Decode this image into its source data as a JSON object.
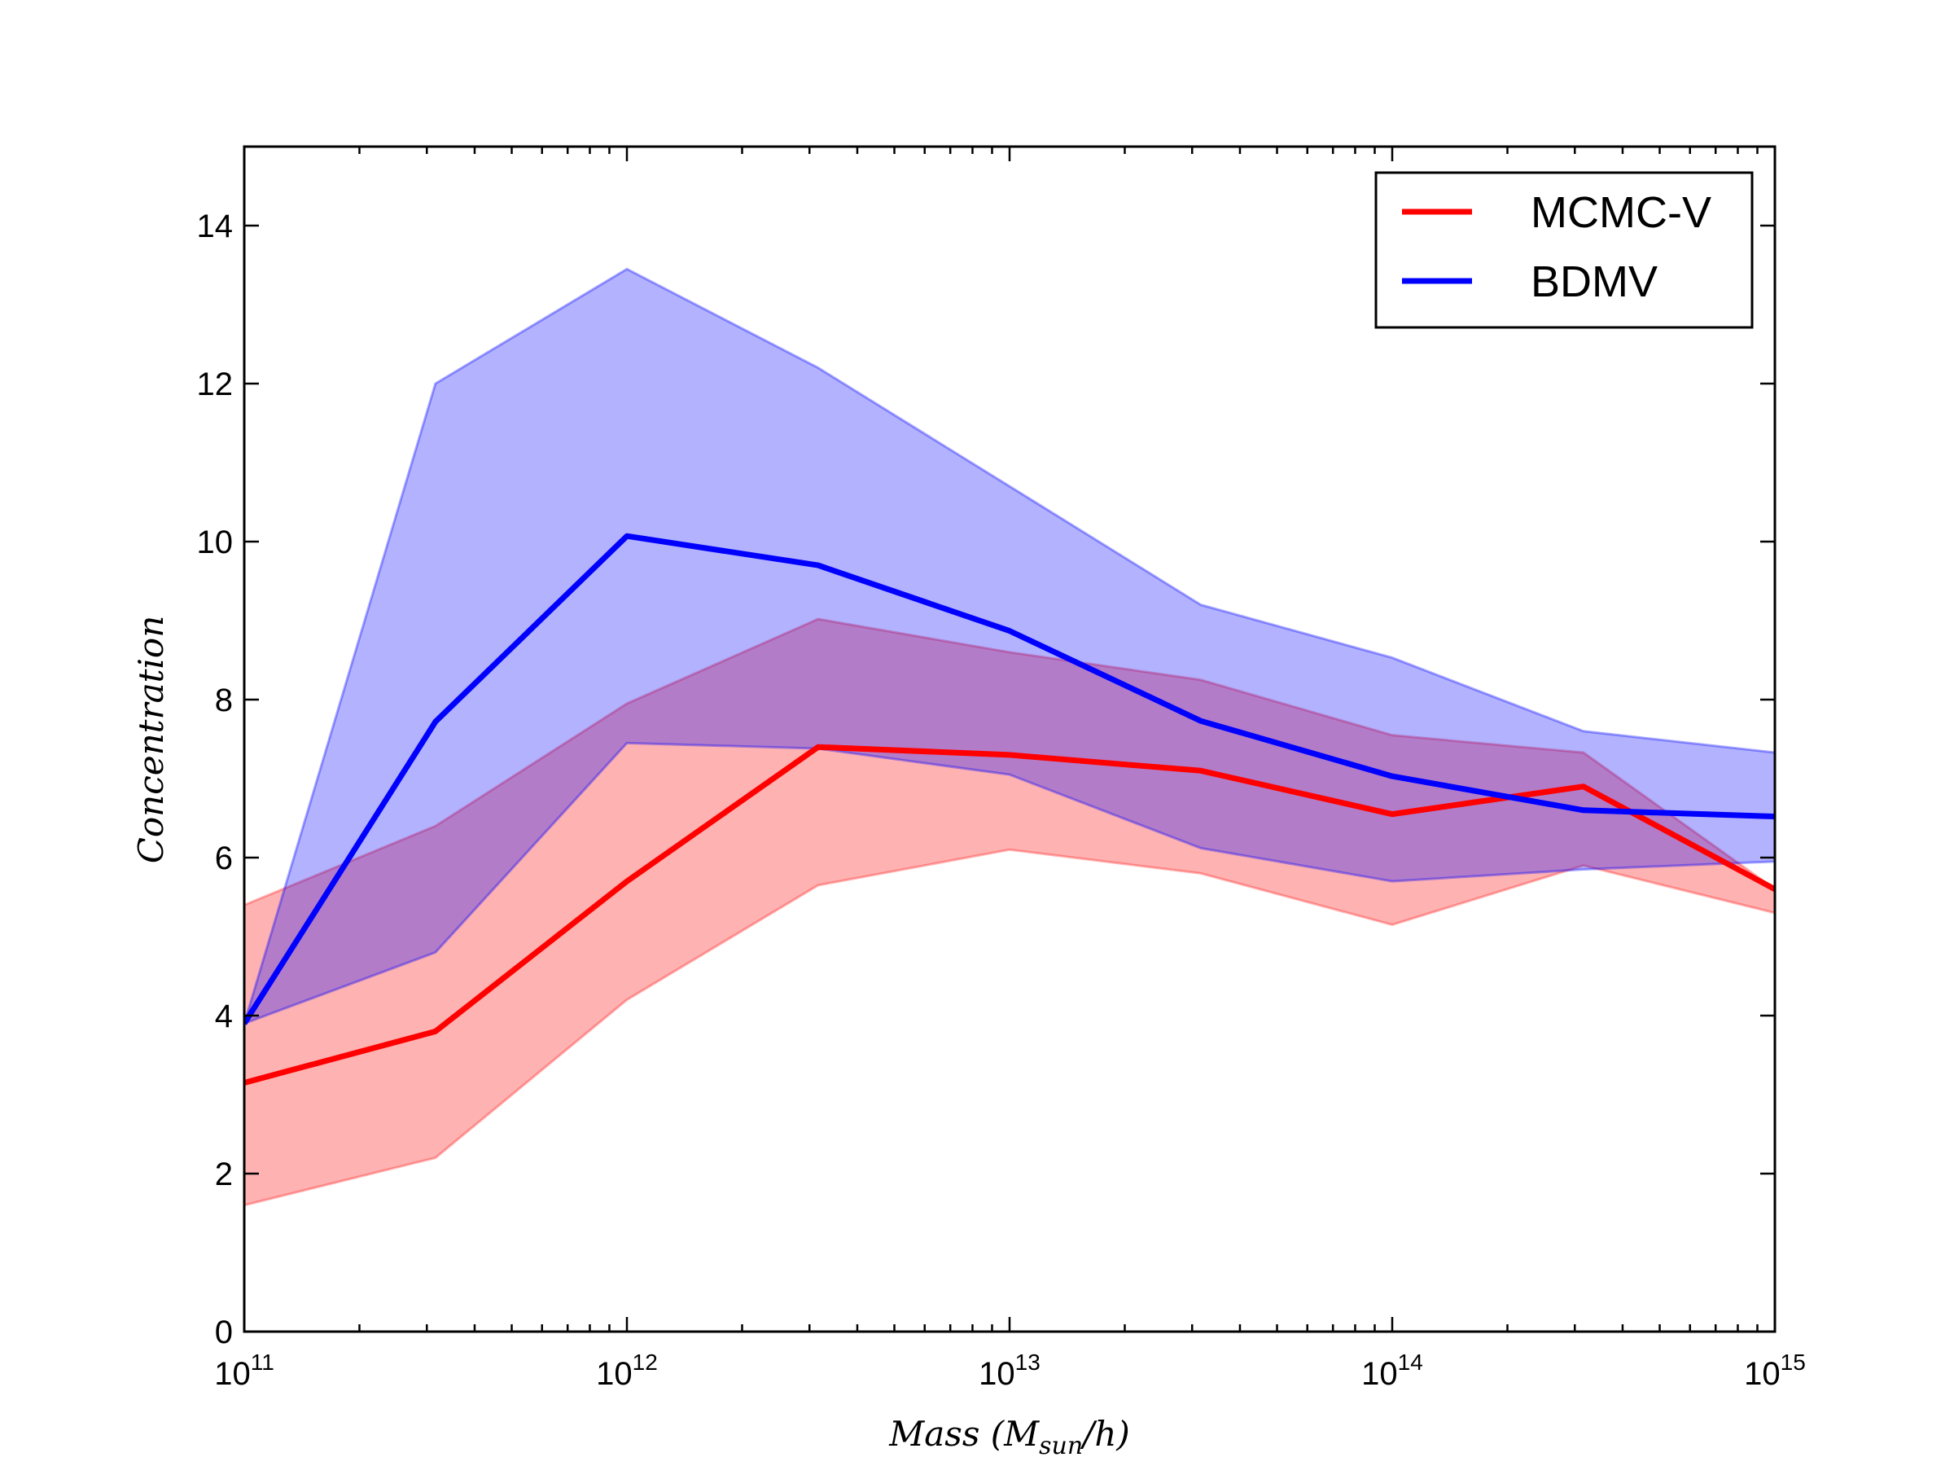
{
  "chart_data": {
    "type": "line",
    "x": [
      100000000000.0,
      316000000000.0,
      1000000000000.0,
      3160000000000.0,
      10000000000000.0,
      31600000000000.0,
      100000000000000.0,
      316000000000000.0,
      1000000000000000.0
    ],
    "xscale": "log",
    "xlim": [
      100000000000.0,
      1000000000000000.0
    ],
    "ylim": [
      0,
      15
    ],
    "xlabel": "Mass (M_sun/h)",
    "xlabel_parts": {
      "main": "Mass (M",
      "sub": "sun",
      "tail": "/h)"
    },
    "ylabel": "Concentration",
    "x_tick_labels": [
      {
        "base": "10",
        "exp": "11"
      },
      {
        "base": "10",
        "exp": "12"
      },
      {
        "base": "10",
        "exp": "13"
      },
      {
        "base": "10",
        "exp": "14"
      },
      {
        "base": "10",
        "exp": "15"
      }
    ],
    "y_ticks": [
      "0",
      "2",
      "4",
      "6",
      "8",
      "10",
      "12",
      "14"
    ],
    "grid": false,
    "legend_position": "top-right",
    "series": [
      {
        "name": "MCMC-V",
        "color": "#ff0000",
        "values": [
          3.15,
          3.8,
          5.7,
          7.4,
          7.3,
          7.1,
          6.55,
          6.9,
          5.6
        ],
        "band_lower": [
          1.6,
          2.2,
          4.2,
          5.65,
          6.1,
          5.8,
          5.15,
          5.9,
          5.3
        ],
        "band_upper": [
          5.4,
          6.4,
          7.95,
          9.02,
          8.6,
          8.25,
          7.55,
          7.33,
          5.6
        ]
      },
      {
        "name": "BDMV",
        "color": "#0000ff",
        "values": [
          3.9,
          7.72,
          10.07,
          9.7,
          8.87,
          7.73,
          7.03,
          6.6,
          6.52
        ],
        "band_lower": [
          3.9,
          4.8,
          7.45,
          7.38,
          7.05,
          6.12,
          5.7,
          5.85,
          5.95
        ],
        "band_upper": [
          3.9,
          12.0,
          13.45,
          12.2,
          10.7,
          9.2,
          8.53,
          7.6,
          7.33
        ]
      }
    ]
  }
}
